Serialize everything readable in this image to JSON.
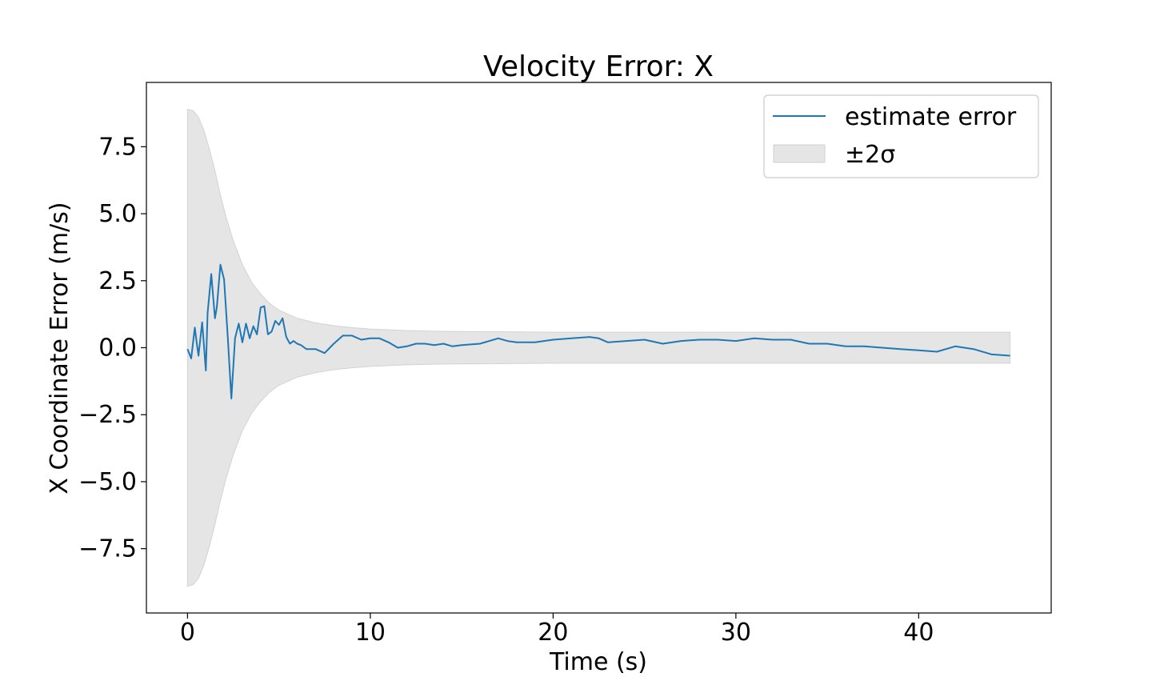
{
  "chart_data": {
    "type": "line",
    "title": "Velocity Error: X",
    "xlabel": "Time (s)",
    "ylabel": "X Coordinate Error (m/s)",
    "xlim": [
      -2.25,
      47.25
    ],
    "ylim": [
      -9.9,
      9.9
    ],
    "xticks": [
      0,
      10,
      20,
      30,
      40
    ],
    "xtick_labels": [
      "0",
      "10",
      "20",
      "30",
      "40"
    ],
    "yticks": [
      -7.5,
      -5.0,
      -2.5,
      0.0,
      2.5,
      5.0,
      7.5
    ],
    "ytick_labels": [
      "−7.5",
      "−5.0",
      "−2.5",
      "0.0",
      "2.5",
      "5.0",
      "7.5"
    ],
    "grid": false,
    "legend": {
      "position": "top-right",
      "entries": [
        {
          "label": "estimate error",
          "kind": "line",
          "color": "#1f77b4"
        },
        {
          "label": "±2σ",
          "kind": "band",
          "color": "#e5e5e5"
        }
      ]
    },
    "series": [
      {
        "name": "estimate error",
        "color": "#1f77b4",
        "x": [
          0,
          0.2,
          0.4,
          0.5,
          0.6,
          0.8,
          1.0,
          1.1,
          1.3,
          1.5,
          1.6,
          1.8,
          2.0,
          2.2,
          2.4,
          2.6,
          2.8,
          3.0,
          3.2,
          3.4,
          3.6,
          3.8,
          4.0,
          4.2,
          4.4,
          4.6,
          4.8,
          5.0,
          5.2,
          5.4,
          5.6,
          5.8,
          6.0,
          6.2,
          6.5,
          7.0,
          7.5,
          8.0,
          8.5,
          9.0,
          9.5,
          10.0,
          10.5,
          11.0,
          11.5,
          12.0,
          12.5,
          13.0,
          13.5,
          14.0,
          14.5,
          15.0,
          16.0,
          17.0,
          17.5,
          18.0,
          19.0,
          20.0,
          21.0,
          22.0,
          22.5,
          23.0,
          24.0,
          25.0,
          26.0,
          27.0,
          28.0,
          29.0,
          30.0,
          31.0,
          32.0,
          33.0,
          34.0,
          35.0,
          36.0,
          37.0,
          38.0,
          39.0,
          40.0,
          41.0,
          42.0,
          43.0,
          44.0,
          45.0
        ],
        "y": [
          -0.05,
          -0.4,
          0.75,
          0.2,
          -0.3,
          0.95,
          -0.85,
          1.3,
          2.75,
          1.1,
          1.5,
          3.1,
          2.55,
          0.4,
          -1.9,
          0.35,
          0.9,
          0.2,
          0.9,
          0.35,
          0.8,
          0.5,
          1.5,
          1.55,
          0.5,
          0.6,
          1.0,
          0.85,
          1.1,
          0.4,
          0.15,
          0.25,
          0.15,
          0.1,
          -0.05,
          -0.05,
          -0.2,
          0.15,
          0.45,
          0.45,
          0.3,
          0.35,
          0.35,
          0.2,
          0.0,
          0.05,
          0.15,
          0.15,
          0.1,
          0.15,
          0.05,
          0.1,
          0.15,
          0.35,
          0.25,
          0.2,
          0.2,
          0.3,
          0.35,
          0.4,
          0.35,
          0.2,
          0.25,
          0.3,
          0.15,
          0.25,
          0.3,
          0.3,
          0.25,
          0.35,
          0.3,
          0.3,
          0.15,
          0.15,
          0.05,
          0.05,
          0.0,
          -0.05,
          -0.1,
          -0.15,
          0.05,
          -0.05,
          -0.25,
          -0.3
        ]
      }
    ],
    "band": {
      "name": "±2σ",
      "color": "#e5e5e5",
      "x": [
        0,
        0.3,
        0.6,
        0.9,
        1.2,
        1.5,
        1.8,
        2.1,
        2.5,
        3.0,
        3.5,
        4.0,
        4.5,
        5.0,
        6.0,
        7.0,
        8.0,
        9.0,
        10.0,
        12.0,
        14.0,
        16.0,
        20.0,
        25.0,
        30.0,
        35.0,
        40.0,
        45.0
      ],
      "upper": [
        8.9,
        8.85,
        8.6,
        8.1,
        7.4,
        6.6,
        5.7,
        4.9,
        4.0,
        3.1,
        2.45,
        2.0,
        1.65,
        1.4,
        1.1,
        0.93,
        0.82,
        0.75,
        0.7,
        0.64,
        0.61,
        0.6,
        0.58,
        0.58,
        0.58,
        0.58,
        0.58,
        0.58
      ],
      "lower": [
        -8.9,
        -8.85,
        -8.6,
        -8.1,
        -7.4,
        -6.6,
        -5.7,
        -4.9,
        -4.0,
        -3.1,
        -2.45,
        -2.0,
        -1.65,
        -1.4,
        -1.1,
        -0.93,
        -0.82,
        -0.75,
        -0.7,
        -0.64,
        -0.61,
        -0.6,
        -0.58,
        -0.58,
        -0.58,
        -0.58,
        -0.58,
        -0.58
      ]
    }
  }
}
